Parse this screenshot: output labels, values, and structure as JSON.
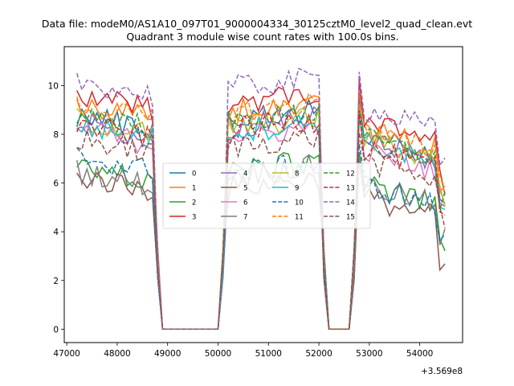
{
  "figure": {
    "suptitle": "Data file: modeM0/AS1A10_097T01_9000004334_30125cztM0_level2_quad_clean.evt",
    "title": "Quadrant 3 module wise count rates with 100.0s bins.",
    "x_offset_label": "+3.569e8"
  },
  "chart_data": {
    "type": "line",
    "title": "Quadrant 3 module wise count rates with 100.0s bins.",
    "xlabel": "",
    "ylabel": "",
    "x_offset": 356900000,
    "xlim": [
      46950,
      54850
    ],
    "ylim": [
      -0.55,
      11.6
    ],
    "xticks": [
      47000,
      48000,
      49000,
      50000,
      51000,
      52000,
      53000,
      54000
    ],
    "yticks": [
      0,
      2,
      4,
      6,
      8,
      10
    ],
    "grid": false,
    "legend_position": "center",
    "segments": [
      [
        47200,
        48700
      ],
      [
        50200,
        52000
      ],
      [
        52750,
        54500
      ]
    ],
    "series": [
      {
        "name": "0",
        "color": "#1f77b4",
        "dash": "solid",
        "level": 8.6,
        "early_level": 8.8,
        "late_level": 8.0
      },
      {
        "name": "1",
        "color": "#ff7f0e",
        "dash": "solid",
        "level": 9.0,
        "early_level": 9.3,
        "late_level": 8.3
      },
      {
        "name": "2",
        "color": "#2ca02c",
        "dash": "solid",
        "level": 6.5,
        "early_level": 6.7,
        "late_level": 6.0
      },
      {
        "name": "3",
        "color": "#d62728",
        "dash": "solid",
        "level": 9.3,
        "early_level": 9.6,
        "late_level": 8.6
      },
      {
        "name": "4",
        "color": "#9467bd",
        "dash": "solid",
        "level": 8.3,
        "early_level": 8.5,
        "late_level": 7.8
      },
      {
        "name": "5",
        "color": "#8c564b",
        "dash": "solid",
        "level": 5.8,
        "early_level": 6.3,
        "late_level": 5.5
      },
      {
        "name": "6",
        "color": "#e377c2",
        "dash": "solid",
        "level": 7.9,
        "early_level": 8.2,
        "late_level": 7.4
      },
      {
        "name": "7",
        "color": "#7f7f7f",
        "dash": "solid",
        "level": 6.3,
        "early_level": 6.5,
        "late_level": 6.0
      },
      {
        "name": "8",
        "color": "#bcbd22",
        "dash": "solid",
        "level": 8.3,
        "early_level": 8.6,
        "late_level": 7.9
      },
      {
        "name": "9",
        "color": "#17becf",
        "dash": "solid",
        "level": 8.1,
        "early_level": 8.4,
        "late_level": 7.7
      },
      {
        "name": "10",
        "color": "#1f77b4",
        "dash": "dashed",
        "level": 6.4,
        "early_level": 7.1,
        "late_level": 6.0
      },
      {
        "name": "11",
        "color": "#ff7f0e",
        "dash": "dashed",
        "level": 8.9,
        "early_level": 9.2,
        "late_level": 8.2
      },
      {
        "name": "12",
        "color": "#2ca02c",
        "dash": "dashed",
        "level": 8.5,
        "early_level": 8.9,
        "late_level": 7.9
      },
      {
        "name": "13",
        "color": "#d62728",
        "dash": "dashed",
        "level": 8.2,
        "early_level": 8.4,
        "late_level": 7.5
      },
      {
        "name": "14",
        "color": "#9467bd",
        "dash": "dashed",
        "level": 9.9,
        "early_level": 10.2,
        "late_level": 9.1
      },
      {
        "name": "15",
        "color": "#8c564b",
        "dash": "dashed",
        "level": 7.5,
        "early_level": 7.8,
        "late_level": 7.0
      }
    ]
  }
}
